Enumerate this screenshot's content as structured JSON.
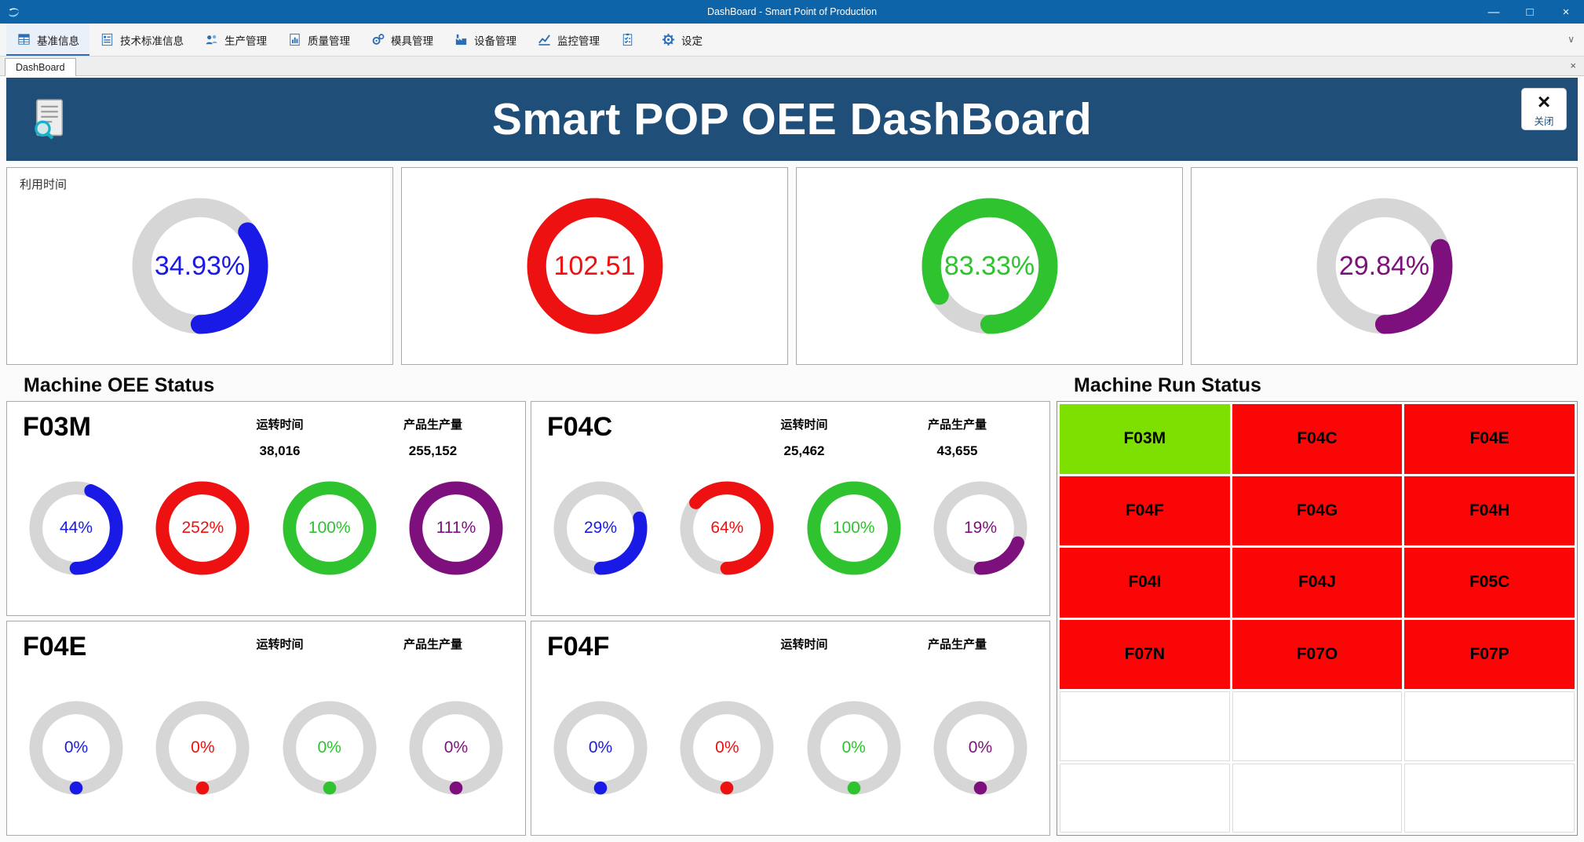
{
  "window": {
    "title": "DashBoard - Smart Point of Production",
    "controls": {
      "minimize": "—",
      "maximize": "□",
      "close": "×"
    }
  },
  "ribbon": {
    "overflow_chevron": "∨",
    "tabs": [
      {
        "label": "基准信息",
        "icon": "grid-info-icon"
      },
      {
        "label": "技术标准信息",
        "icon": "standards-doc-icon"
      },
      {
        "label": "生产管理",
        "icon": "people-icon"
      },
      {
        "label": "质量管理",
        "icon": "quality-chart-icon"
      },
      {
        "label": "模具管理",
        "icon": "mold-gears-icon"
      },
      {
        "label": "设备管理",
        "icon": "factory-icon"
      },
      {
        "label": "监控管理",
        "icon": "monitor-chart-icon"
      },
      {
        "label": "",
        "icon": "checklist-icon"
      },
      {
        "label": "设定",
        "icon": "settings-gear-icon"
      }
    ]
  },
  "tabs": {
    "active": "DashBoard",
    "close": "×"
  },
  "banner": {
    "title": "Smart POP OEE DashBoard",
    "close_x": "×",
    "close_label": "关闭"
  },
  "kpis": [
    {
      "label": "利用时间",
      "value": "34.93%",
      "pct": 34.93,
      "color": "#1a1ae6"
    },
    {
      "label": "",
      "value": "102.51",
      "pct": 102.51,
      "color": "#ee1111"
    },
    {
      "label": "",
      "value": "83.33%",
      "pct": 83.33,
      "color": "#2fc32f"
    },
    {
      "label": "",
      "value": "29.84%",
      "pct": 29.84,
      "color": "#7d107d"
    }
  ],
  "sections": {
    "oee": "Machine OEE Status",
    "run": "Machine Run Status"
  },
  "machines": [
    {
      "name": "F03M",
      "runtime_label": "运转时间",
      "runtime": "38,016",
      "output_label": "产品生产量",
      "output": "255,152",
      "gauges": [
        {
          "value": "44%",
          "pct": 44,
          "color": "#1a1ae6"
        },
        {
          "value": "252%",
          "pct": 252,
          "color": "#ee1111"
        },
        {
          "value": "100%",
          "pct": 100,
          "color": "#2fc32f"
        },
        {
          "value": "111%",
          "pct": 111,
          "color": "#7d107d"
        }
      ]
    },
    {
      "name": "F04C",
      "runtime_label": "运转时间",
      "runtime": "25,462",
      "output_label": "产品生产量",
      "output": "43,655",
      "gauges": [
        {
          "value": "29%",
          "pct": 29,
          "color": "#1a1ae6"
        },
        {
          "value": "64%",
          "pct": 64,
          "color": "#ee1111"
        },
        {
          "value": "100%",
          "pct": 100,
          "color": "#2fc32f"
        },
        {
          "value": "19%",
          "pct": 19,
          "color": "#7d107d"
        }
      ]
    },
    {
      "name": "F04E",
      "runtime_label": "运转时间",
      "runtime": "",
      "output_label": "产品生产量",
      "output": "",
      "gauges": [
        {
          "value": "0%",
          "pct": 0,
          "color": "#1a1ae6"
        },
        {
          "value": "0%",
          "pct": 0,
          "color": "#ee1111"
        },
        {
          "value": "0%",
          "pct": 0,
          "color": "#2fc32f"
        },
        {
          "value": "0%",
          "pct": 0,
          "color": "#7d107d"
        }
      ]
    },
    {
      "name": "F04F",
      "runtime_label": "运转时间",
      "runtime": "",
      "output_label": "产品生产量",
      "output": "",
      "gauges": [
        {
          "value": "0%",
          "pct": 0,
          "color": "#1a1ae6"
        },
        {
          "value": "0%",
          "pct": 0,
          "color": "#ee1111"
        },
        {
          "value": "0%",
          "pct": 0,
          "color": "#2fc32f"
        },
        {
          "value": "0%",
          "pct": 0,
          "color": "#7d107d"
        }
      ]
    }
  ],
  "run_status": {
    "colors": {
      "running": "#7de000",
      "stopped": "#fb0606",
      "empty": "#ffffff"
    },
    "cells": [
      {
        "label": "F03M",
        "state": "running"
      },
      {
        "label": "F04C",
        "state": "stopped"
      },
      {
        "label": "F04E",
        "state": "stopped"
      },
      {
        "label": "F04F",
        "state": "stopped"
      },
      {
        "label": "F04G",
        "state": "stopped"
      },
      {
        "label": "F04H",
        "state": "stopped"
      },
      {
        "label": "F04I",
        "state": "stopped"
      },
      {
        "label": "F04J",
        "state": "stopped"
      },
      {
        "label": "F05C",
        "state": "stopped"
      },
      {
        "label": "F07N",
        "state": "stopped"
      },
      {
        "label": "F07O",
        "state": "stopped"
      },
      {
        "label": "F07P",
        "state": "stopped"
      },
      {
        "label": "",
        "state": "empty"
      },
      {
        "label": "",
        "state": "empty"
      },
      {
        "label": "",
        "state": "empty"
      },
      {
        "label": "",
        "state": "empty"
      },
      {
        "label": "",
        "state": "empty"
      },
      {
        "label": "",
        "state": "empty"
      }
    ]
  }
}
